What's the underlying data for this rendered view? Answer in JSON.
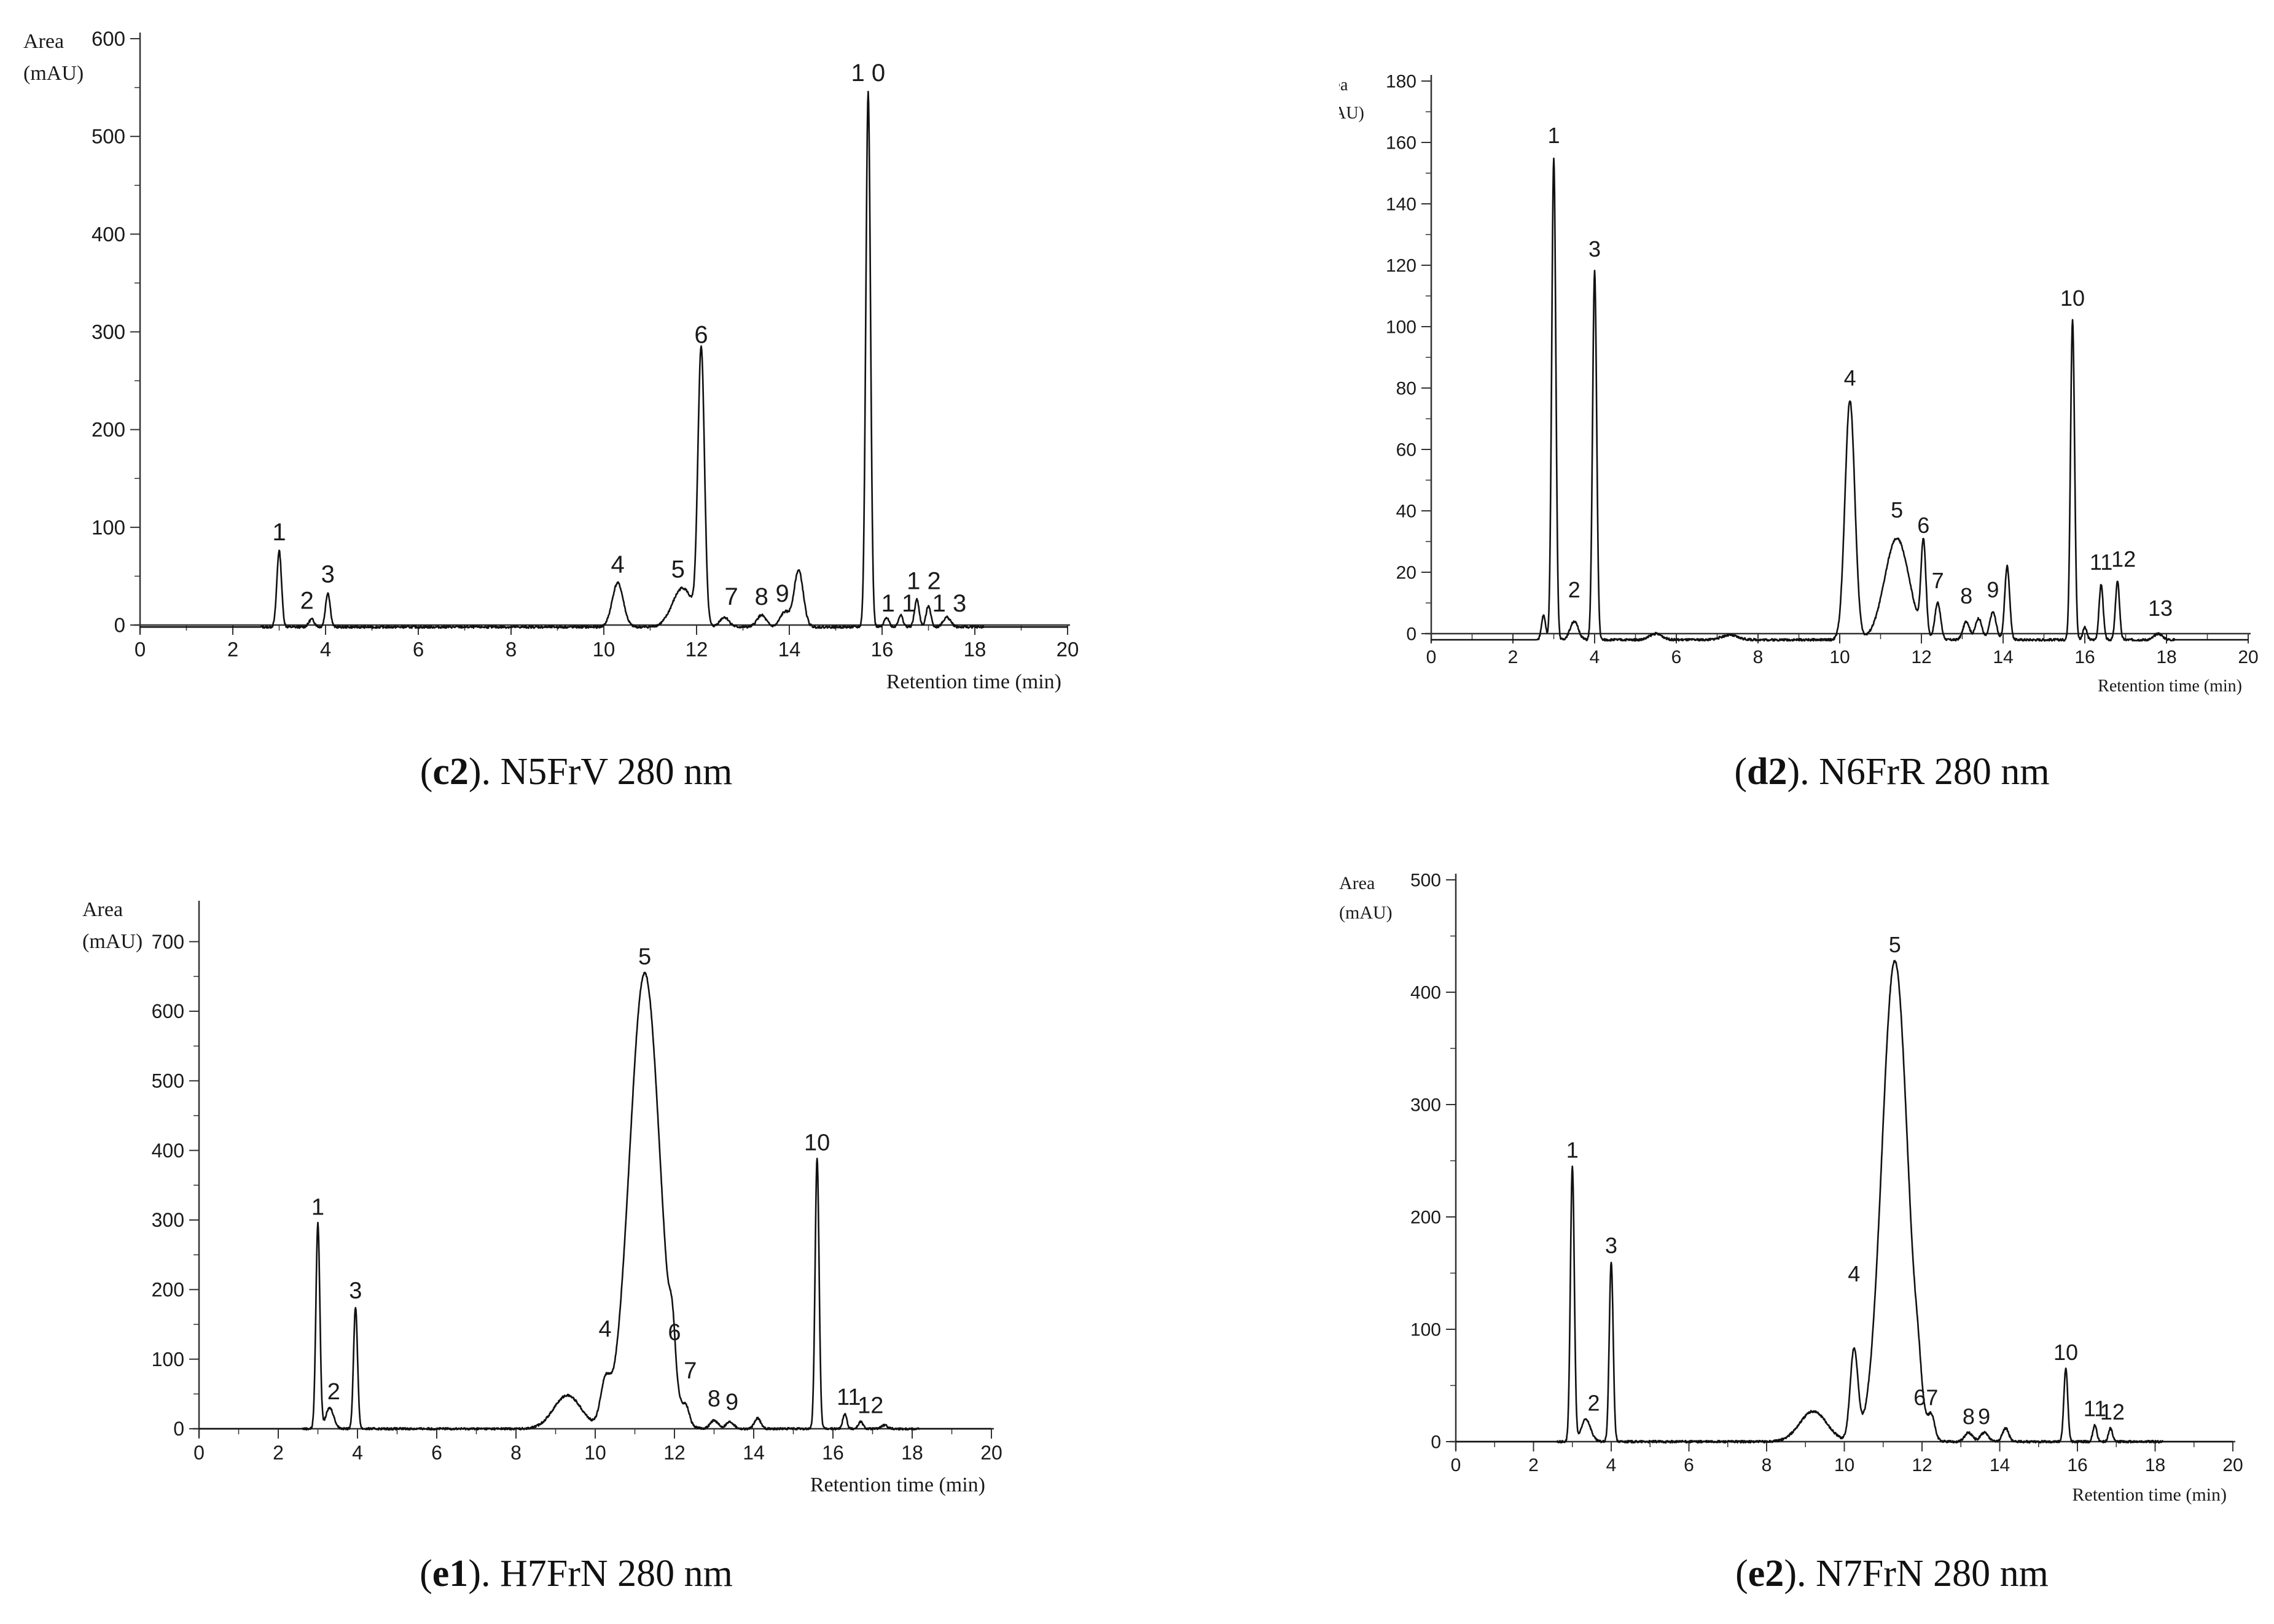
{
  "chart_data": [
    {
      "id": "c2",
      "type": "line",
      "caption": {
        "letter": "c2",
        "text": "). N5FrV 280 nm"
      },
      "ylabel": [
        "Area",
        "(mAU)"
      ],
      "xlabel": "Retention time (min)",
      "xlim": [
        0,
        20
      ],
      "ylim": [
        0,
        600
      ],
      "xticks": [
        0,
        2,
        4,
        6,
        8,
        10,
        12,
        14,
        16,
        18,
        20
      ],
      "yticks": [
        0,
        100,
        200,
        300,
        400,
        500,
        600
      ],
      "baseline": -2,
      "series": [
        {
          "values": [
            [
              3.0,
              78,
              0.05
            ],
            [
              3.7,
              8,
              0.06
            ],
            [
              4.05,
              35,
              0.05
            ],
            [
              10.3,
              45,
              0.12
            ],
            [
              11.7,
              40,
              0.22
            ],
            [
              12.1,
              280,
              0.07
            ],
            [
              12.6,
              10,
              0.1
            ],
            [
              13.4,
              12,
              0.1
            ],
            [
              13.9,
              15,
              0.1
            ],
            [
              14.2,
              58,
              0.1
            ],
            [
              15.7,
              548,
              0.05
            ],
            [
              16.1,
              10,
              0.05
            ],
            [
              16.4,
              12,
              0.05
            ],
            [
              16.75,
              28,
              0.05
            ],
            [
              17.0,
              22,
              0.05
            ],
            [
              17.4,
              10,
              0.08
            ]
          ]
        }
      ],
      "peak_labels": [
        {
          "label": "1",
          "x": 3.0,
          "y": 78
        },
        {
          "label": "2",
          "x": 3.6,
          "y": 8
        },
        {
          "label": "3",
          "x": 4.05,
          "y": 35
        },
        {
          "label": "4",
          "x": 10.3,
          "y": 45
        },
        {
          "label": "5",
          "x": 11.6,
          "y": 40
        },
        {
          "label": "6",
          "x": 12.1,
          "y": 280
        },
        {
          "label": "7",
          "x": 12.75,
          "y": 12
        },
        {
          "label": "8",
          "x": 13.4,
          "y": 12
        },
        {
          "label": "9",
          "x": 13.85,
          "y": 15
        },
        {
          "label": "1 0",
          "x": 15.7,
          "y": 548
        },
        {
          "label": "1 1",
          "x": 16.35,
          "y": 5
        },
        {
          "label": "1 2",
          "x": 16.9,
          "y": 28
        },
        {
          "label": "1 3",
          "x": 17.45,
          "y": 5
        }
      ]
    },
    {
      "id": "d2",
      "type": "line",
      "caption": {
        "letter": "d2",
        "text": "). N6FrR 280 nm"
      },
      "ylabel": [
        "Area",
        "(mAU)"
      ],
      "xlabel": "Retention time (min)",
      "xlim": [
        0,
        20
      ],
      "ylim": [
        0,
        180
      ],
      "xticks": [
        0,
        2,
        4,
        6,
        8,
        10,
        12,
        14,
        16,
        18,
        20
      ],
      "yticks": [
        0,
        20,
        40,
        60,
        80,
        100,
        120,
        140,
        160,
        180
      ],
      "baseline": -2,
      "series": [
        {
          "values": [
            [
              2.75,
              8,
              0.05
            ],
            [
              3.0,
              157,
              0.05
            ],
            [
              3.5,
              6,
              0.1
            ],
            [
              4.0,
              120,
              0.05
            ],
            [
              5.5,
              2,
              0.15
            ],
            [
              7.3,
              1.5,
              0.2
            ],
            [
              10.25,
              78,
              0.12
            ],
            [
              11.4,
              33,
              0.3
            ],
            [
              12.05,
              30,
              0.06
            ],
            [
              12.4,
              12,
              0.07
            ],
            [
              13.1,
              6,
              0.08
            ],
            [
              13.4,
              7,
              0.08
            ],
            [
              13.75,
              9,
              0.08
            ],
            [
              14.1,
              24,
              0.06
            ],
            [
              15.7,
              104,
              0.05
            ],
            [
              16.0,
              4,
              0.05
            ],
            [
              16.4,
              18,
              0.05
            ],
            [
              16.8,
              19,
              0.05
            ],
            [
              17.8,
              2,
              0.1
            ]
          ]
        }
      ],
      "peak_labels": [
        {
          "label": "1",
          "x": 3.0,
          "y": 157
        },
        {
          "label": "2",
          "x": 3.5,
          "y": 9
        },
        {
          "label": "3",
          "x": 4.0,
          "y": 120
        },
        {
          "label": "4",
          "x": 10.25,
          "y": 78
        },
        {
          "label": "5",
          "x": 11.4,
          "y": 35
        },
        {
          "label": "6",
          "x": 12.05,
          "y": 30
        },
        {
          "label": "7",
          "x": 12.4,
          "y": 12
        },
        {
          "label": "8",
          "x": 13.1,
          "y": 7
        },
        {
          "label": "9",
          "x": 13.75,
          "y": 9
        },
        {
          "label": "10",
          "x": 15.7,
          "y": 104
        },
        {
          "label": "11",
          "x": 16.4,
          "y": 18
        },
        {
          "label": "12",
          "x": 16.95,
          "y": 19
        },
        {
          "label": "13",
          "x": 17.85,
          "y": 3
        }
      ]
    },
    {
      "id": "e1",
      "type": "line",
      "caption": {
        "letter": "e1",
        "text": "). H7FrN 280 nm"
      },
      "ylabel": [
        "Area",
        "(mAU)"
      ],
      "xlabel": "Retention time (min)",
      "xlim": [
        0,
        20
      ],
      "ylim": [
        0,
        750
      ],
      "xticks": [
        0,
        2,
        4,
        6,
        8,
        10,
        12,
        14,
        16,
        18,
        20
      ],
      "yticks": [
        0,
        100,
        200,
        300,
        400,
        500,
        600,
        700
      ],
      "baseline": 0,
      "series": [
        {
          "values": [
            [
              3.0,
              295,
              0.05
            ],
            [
              3.3,
              30,
              0.1
            ],
            [
              3.95,
              175,
              0.05
            ],
            [
              9.3,
              48,
              0.35
            ],
            [
              10.25,
              55,
              0.12
            ],
            [
              11.25,
              655,
              0.38
            ],
            [
              11.95,
              60,
              0.07
            ],
            [
              12.3,
              20,
              0.08
            ],
            [
              13.0,
              12,
              0.1
            ],
            [
              13.4,
              10,
              0.1
            ],
            [
              14.1,
              15,
              0.08
            ],
            [
              15.6,
              388,
              0.05
            ],
            [
              16.3,
              22,
              0.05
            ],
            [
              16.7,
              10,
              0.06
            ],
            [
              17.3,
              5,
              0.08
            ]
          ]
        }
      ],
      "peak_labels": [
        {
          "label": "1",
          "x": 3.0,
          "y": 295
        },
        {
          "label": "2",
          "x": 3.4,
          "y": 30
        },
        {
          "label": "3",
          "x": 3.95,
          "y": 175
        },
        {
          "label": "4",
          "x": 10.25,
          "y": 120
        },
        {
          "label": "5",
          "x": 11.25,
          "y": 655
        },
        {
          "label": "6",
          "x": 12.0,
          "y": 115
        },
        {
          "label": "7",
          "x": 12.4,
          "y": 60
        },
        {
          "label": "8",
          "x": 13.0,
          "y": 20
        },
        {
          "label": "9",
          "x": 13.45,
          "y": 15
        },
        {
          "label": "10",
          "x": 15.6,
          "y": 388
        },
        {
          "label": "11",
          "x": 16.4,
          "y": 22
        },
        {
          "label": "12",
          "x": 16.95,
          "y": 10
        }
      ]
    },
    {
      "id": "e2",
      "type": "line",
      "caption": {
        "letter": "e2",
        "text": "). N7FrN 280 nm"
      },
      "ylabel": [
        "Area",
        "(mAU)"
      ],
      "xlabel": "Retention time (min)",
      "xlim": [
        0,
        20
      ],
      "ylim": [
        0,
        500
      ],
      "xticks": [
        0,
        2,
        4,
        6,
        8,
        10,
        12,
        14,
        16,
        18,
        20
      ],
      "yticks": [
        0,
        100,
        200,
        300,
        400,
        500
      ],
      "baseline": 0,
      "series": [
        {
          "values": [
            [
              3.0,
              245,
              0.05
            ],
            [
              3.35,
              20,
              0.12
            ],
            [
              4.0,
              160,
              0.05
            ],
            [
              9.2,
              27,
              0.35
            ],
            [
              10.25,
              80,
              0.1
            ],
            [
              11.3,
              428,
              0.33
            ],
            [
              11.9,
              20,
              0.08
            ],
            [
              12.25,
              18,
              0.08
            ],
            [
              13.2,
              8,
              0.1
            ],
            [
              13.6,
              8,
              0.1
            ],
            [
              14.15,
              12,
              0.08
            ],
            [
              15.7,
              65,
              0.05
            ],
            [
              16.45,
              15,
              0.05
            ],
            [
              16.85,
              12,
              0.05
            ]
          ]
        }
      ],
      "peak_labels": [
        {
          "label": "1",
          "x": 3.0,
          "y": 245
        },
        {
          "label": "2",
          "x": 3.55,
          "y": 20
        },
        {
          "label": "3",
          "x": 4.0,
          "y": 160
        },
        {
          "label": "4",
          "x": 10.25,
          "y": 135
        },
        {
          "label": "5",
          "x": 11.3,
          "y": 428
        },
        {
          "label": "67",
          "x": 12.1,
          "y": 25
        },
        {
          "label": "8",
          "x": 13.2,
          "y": 8
        },
        {
          "label": "9",
          "x": 13.6,
          "y": 8
        },
        {
          "label": "10",
          "x": 15.7,
          "y": 65
        },
        {
          "label": "11",
          "x": 16.45,
          "y": 15
        },
        {
          "label": "12",
          "x": 16.9,
          "y": 12
        }
      ]
    }
  ]
}
